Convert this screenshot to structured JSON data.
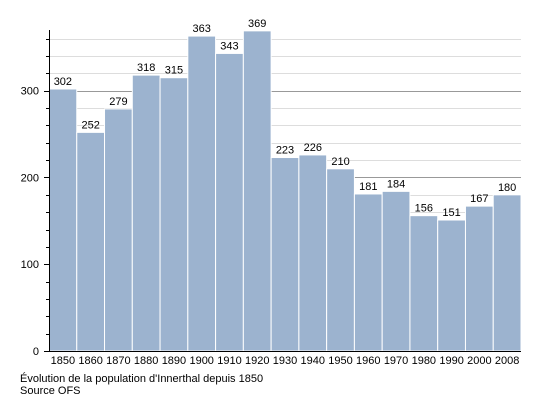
{
  "chart_data": {
    "type": "bar",
    "categories": [
      "1850",
      "1860",
      "1870",
      "1880",
      "1890",
      "1900",
      "1910",
      "1920",
      "1930",
      "1940",
      "1950",
      "1960",
      "1970",
      "1980",
      "1990",
      "2000",
      "2008"
    ],
    "values": [
      302,
      252,
      279,
      318,
      315,
      363,
      343,
      369,
      223,
      226,
      210,
      181,
      184,
      156,
      151,
      167,
      180
    ],
    "yticks": [
      0,
      100,
      200,
      300
    ],
    "ylim": [
      0,
      370
    ],
    "grid": true,
    "data_labels": true,
    "bar_color": "#9cb3cf",
    "bar_edge_color": "#ffffff",
    "grid_color": "#cccccc",
    "axis_color": "#000000"
  },
  "caption": {
    "line1": "Évolution de la population d'Innerthal depuis 1850",
    "line2": "Source OFS"
  }
}
